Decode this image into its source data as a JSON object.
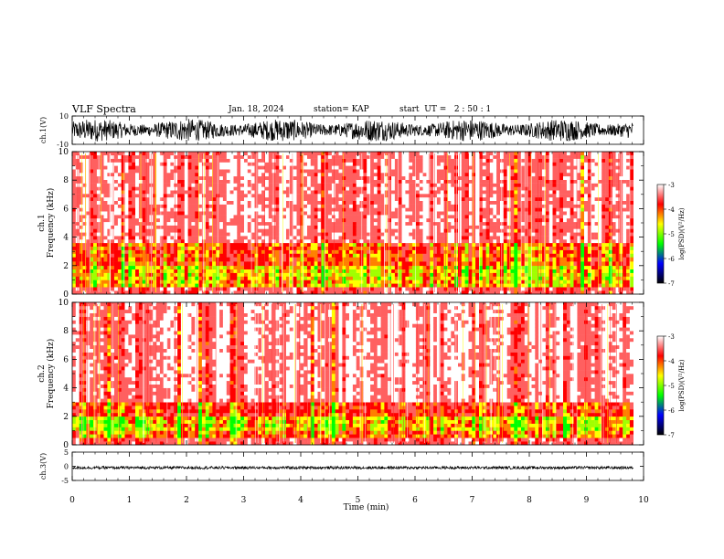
{
  "header": {
    "title": "VLF Spectra",
    "date": "Jan. 18, 2024",
    "station": "station= KAP",
    "start": "start  UT =   2 : 50 : 1"
  },
  "chart_data": [
    {
      "id": "ch1-waveform",
      "type": "line",
      "ylabel": "ch.1(V)",
      "ylim": [
        -10,
        10
      ],
      "yticks": [
        "10",
        "-10"
      ],
      "xlim": [
        0,
        10
      ],
      "data_end_min": 9.82,
      "description_of_values": "dense oscillating waveform, envelope roughly between -8 and +8 V",
      "envelope": {
        "min": -8,
        "max": 8
      },
      "color": "#000000"
    },
    {
      "id": "ch1-spectrogram",
      "type": "heatmap",
      "ylabel": "ch.1\nFrequency (kHz)",
      "ylabel_lines": [
        "ch.1",
        "Frequency (kHz)"
      ],
      "ylim": [
        0,
        10
      ],
      "yticks": [
        "0",
        "2",
        "4",
        "6",
        "8",
        "10"
      ],
      "xlim": [
        0,
        10
      ],
      "data_end_min": 9.82,
      "band_profile": [
        {
          "f_min": 0.0,
          "f_max": 0.5,
          "level": -3.6
        },
        {
          "f_min": 0.5,
          "f_max": 1.0,
          "level": -4.6
        },
        {
          "f_min": 1.0,
          "f_max": 2.0,
          "level": -4.7
        },
        {
          "f_min": 2.0,
          "f_max": 2.6,
          "level": -4.3
        },
        {
          "f_min": 2.6,
          "f_max": 3.6,
          "level": -4.3
        },
        {
          "f_min": 3.6,
          "f_max": 10.0,
          "level": -3.4
        }
      ],
      "colorbar": {
        "label": "log(PSD)(V²/Hz)",
        "range": [
          -7,
          -3
        ],
        "ticks": [
          "-3",
          "-4",
          "-5",
          "-6",
          "-7"
        ],
        "colors": [
          "#ffffff",
          "#ff0000",
          "#ffff00",
          "#00ff00",
          "#0000ff",
          "#000000"
        ]
      }
    },
    {
      "id": "ch2-spectrogram",
      "type": "heatmap",
      "ylabel": "ch.2\nFrequency (kHz)",
      "ylabel_lines": [
        "ch.2",
        "Frequency (kHz)"
      ],
      "ylim": [
        0,
        10
      ],
      "yticks": [
        "0",
        "2",
        "4",
        "6",
        "8",
        "10"
      ],
      "xlim": [
        0,
        10
      ],
      "data_end_min": 9.82,
      "band_profile": [
        {
          "f_min": 0.0,
          "f_max": 0.5,
          "level": -3.6
        },
        {
          "f_min": 0.5,
          "f_max": 1.0,
          "level": -4.4
        },
        {
          "f_min": 1.0,
          "f_max": 2.0,
          "level": -4.7
        },
        {
          "f_min": 2.0,
          "f_max": 3.0,
          "level": -4.1
        },
        {
          "f_min": 3.0,
          "f_max": 10.0,
          "level": -3.3
        }
      ],
      "colorbar": {
        "label": "log(PSD)(V²/Hz)",
        "range": [
          -7,
          -3
        ],
        "ticks": [
          "-3",
          "-4",
          "-5",
          "-6",
          "-7"
        ],
        "colors": [
          "#ffffff",
          "#ff0000",
          "#ffff00",
          "#00ff00",
          "#0000ff",
          "#000000"
        ]
      }
    },
    {
      "id": "ch3-waveform",
      "type": "line",
      "ylabel": "ch.3(V)",
      "ylim": [
        -5,
        5
      ],
      "yticks": [
        "5",
        "0",
        "-5"
      ],
      "xlim": [
        0,
        10
      ],
      "data_end_min": 9.82,
      "envelope": {
        "min": -1.0,
        "max": 0.0
      },
      "color": "#000000"
    }
  ],
  "xaxis": {
    "label": "Time  (min)",
    "ticks": [
      "0",
      "1",
      "2",
      "3",
      "4",
      "5",
      "6",
      "7",
      "8",
      "9",
      "10"
    ]
  }
}
